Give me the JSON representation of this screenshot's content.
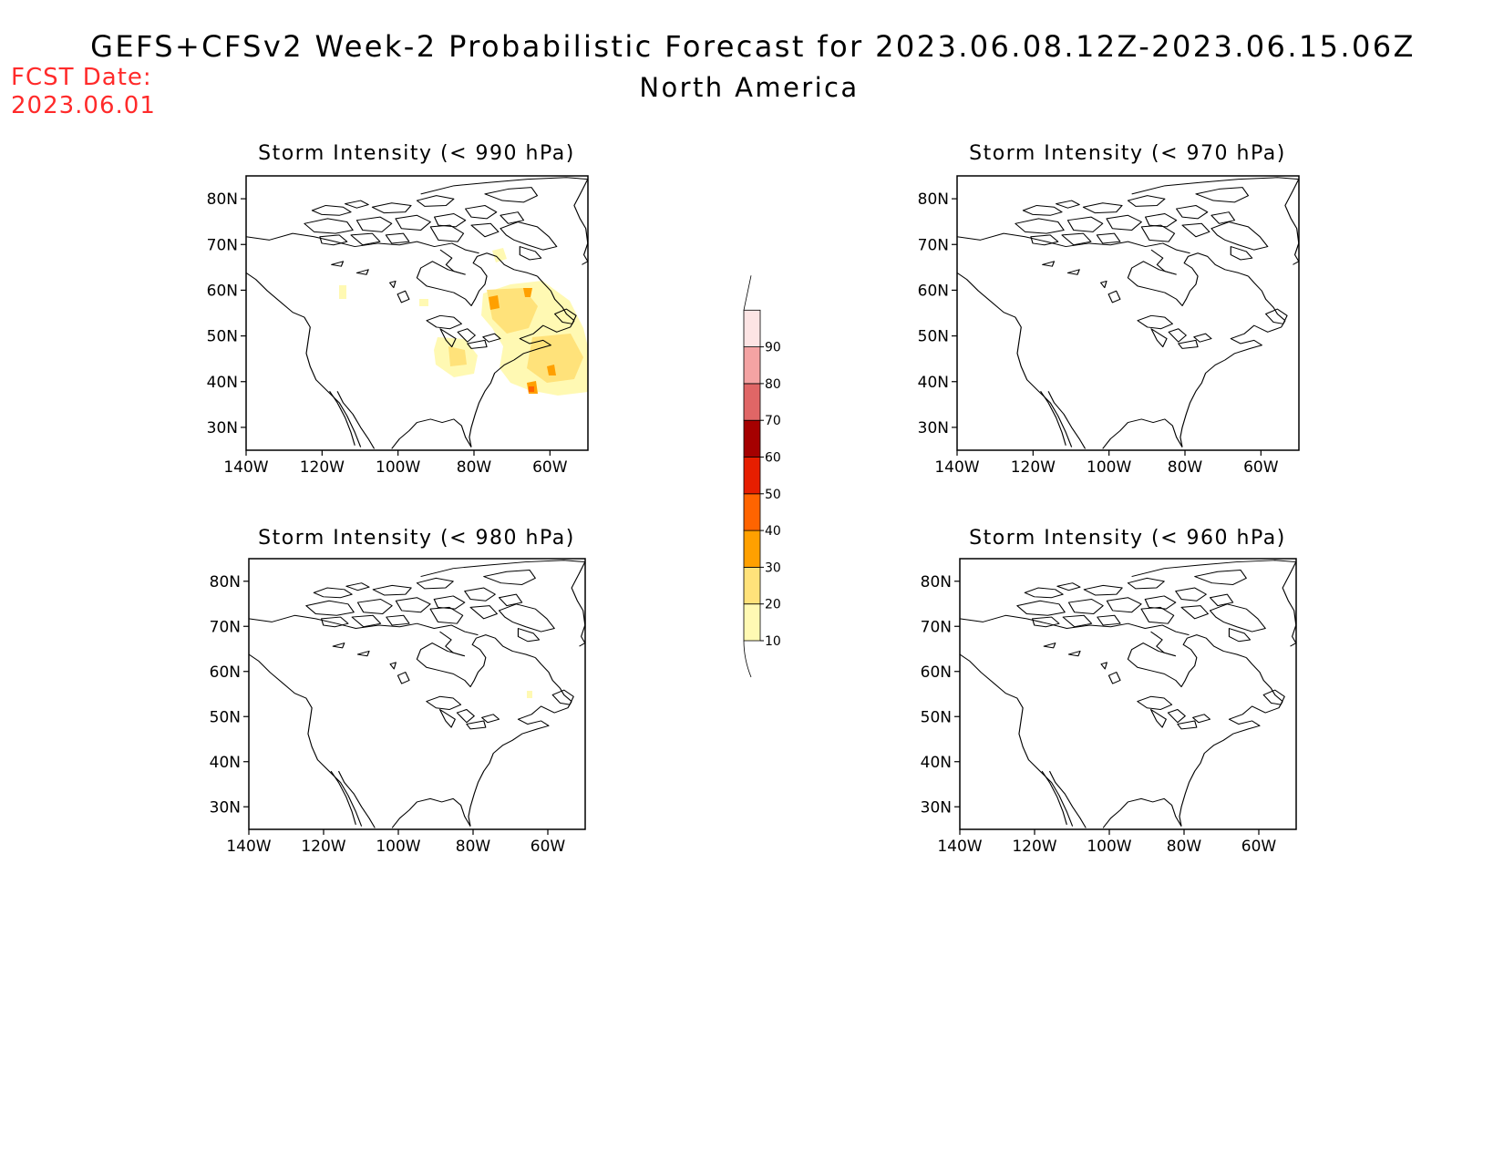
{
  "header": {
    "title": "GEFS+CFSv2 Week-2 Probabilistic Forecast for 2023.06.08.12Z-2023.06.15.06Z",
    "subtitle": "North America",
    "fcst_label": "FCST Date:",
    "fcst_date": "2023.06.01",
    "fcst_color": "#ff2a2a"
  },
  "axes": {
    "lat_ticks": [
      "80N",
      "70N",
      "60N",
      "50N",
      "40N",
      "30N"
    ],
    "lat_values": [
      80,
      70,
      60,
      50,
      40,
      30
    ],
    "lon_ticks": [
      "140W",
      "120W",
      "100W",
      "80W",
      "60W"
    ],
    "lon_values": [
      -140,
      -120,
      -100,
      -80,
      -60
    ],
    "lon_range": [
      -140,
      -50
    ],
    "lat_range": [
      25,
      85
    ]
  },
  "panels": [
    {
      "id": "p990",
      "title": "Storm Intensity (< 990 hPa)",
      "has_signal": true
    },
    {
      "id": "p970",
      "title": "Storm Intensity (< 970 hPa)",
      "has_signal": false
    },
    {
      "id": "p980",
      "title": "Storm Intensity (< 980 hPa)",
      "has_signal": true
    },
    {
      "id": "p960",
      "title": "Storm Intensity (< 960 hPa)",
      "has_signal": false
    }
  ],
  "colorbar": {
    "labels": [
      "90",
      "80",
      "70",
      "60",
      "50",
      "40",
      "30",
      "20",
      "10"
    ],
    "levels": [
      10,
      20,
      30,
      40,
      50,
      60,
      70,
      80,
      90
    ],
    "colors": [
      "#fff9b3",
      "#ffe27a",
      "#ffa000",
      "#ff6400",
      "#e61e00",
      "#a50000",
      "#e06666",
      "#f4a3a3",
      "#fde4e4"
    ]
  }
}
